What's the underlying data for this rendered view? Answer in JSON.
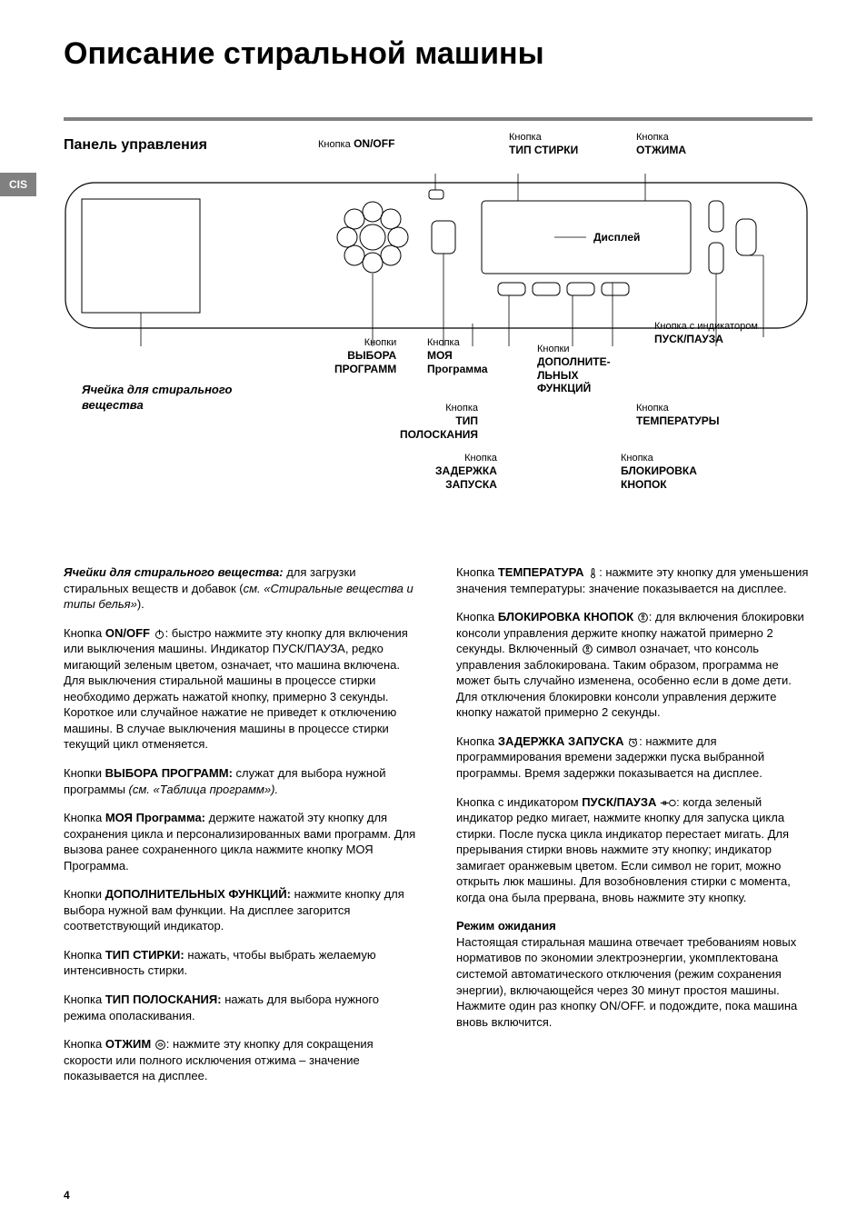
{
  "side_tab": "CIS",
  "page_title": "Описание стиральной машины",
  "panel_title": "Панель управления",
  "page_number": "4",
  "callouts": {
    "onoff": {
      "small": "Кнопка",
      "bold": "ON/OFF"
    },
    "wash_type": {
      "small": "Кнопка",
      "bold": "ТИП СТИРКИ"
    },
    "spin": {
      "small": "Кнопка",
      "bold": "ОТЖИМА"
    },
    "display": {
      "bold": "Дисплей"
    },
    "programs": {
      "small": "Кнопки",
      "bold": "ВЫБОРА ПРОГРАММ"
    },
    "my_program": {
      "small": "Кнопка",
      "bold": "МОЯ Программа"
    },
    "rinse_type": {
      "small": "Кнопка",
      "bold": "ТИП ПОЛОСКАНИЯ"
    },
    "extra_functions": {
      "small": "Кнопки",
      "bold": "ДОПОЛНИТЕ-ЛЬНЫХ ФУНКЦИЙ"
    },
    "start_pause": {
      "small": "Кнопка с индикатором",
      "bold": "ПУСК/ПАУЗА"
    },
    "temperature": {
      "small": "Кнопка",
      "bold": "ТЕМПЕРАТУРЫ"
    },
    "delay": {
      "small": "Кнопка",
      "bold": "ЗАДЕРЖКА ЗАПУСКА"
    },
    "lock": {
      "small": "Кнопка",
      "bold": "БЛОКИРОВКА КНОПОК"
    }
  },
  "detergent_label_l1": "Ячейка для стирального",
  "detergent_label_l2": "вещества",
  "left_col": [
    {
      "bold_italic": "Ячейки для стирального вещества:",
      "rest": " для загрузки стиральных веществ и добавок (",
      "italic": "см. «Стиральные вещества и типы белья»",
      "tail": ")."
    },
    {
      "pre": "Кнопка ",
      "bold": "ON/OFF",
      "icon": "power",
      "rest": ": быстро нажмите эту кнопку для включения или выключения машины. Индикатор ПУСК/ПАУЗА, редко мигающий зеленым цветом, означает, что машина включена. Для выключения стиральной машины в процессе стирки необходимо держать нажатой кнопку, примерно 3 секунды. Короткое или случайное нажатие не приведет к отключению машины. В случае выключения машины в процессе стирки текущий цикл отменяется."
    },
    {
      "pre": "Кнопки ",
      "bold": "ВЫБОРА ПРОГРАММ:",
      "rest": " служат для выбора нужной программы ",
      "italic": "(см. «Таблица программ»).",
      "tail": ""
    },
    {
      "pre": "Кнопка ",
      "bold": "МОЯ Программа:",
      "rest": " держите нажатой эту кнопку для сохранения цикла и персонализированных вами программ. Для вызова ранее сохраненного цикла нажмите кнопку МОЯ Программа."
    },
    {
      "pre": "Кнопки ",
      "bold": "ДОПОЛНИТЕЛЬНЫХ ФУНКЦИЙ:",
      "rest": " нажмите кнопку для выбора нужной вам функции. На дисплее загорится соответствующий индикатор."
    },
    {
      "pre": "Кнопка ",
      "bold": "ТИП СТИРКИ:",
      "rest": " нажать, чтобы выбрать желаемую интенсивность стирки."
    },
    {
      "pre": "Кнопка ",
      "bold": "ТИП ПОЛОСКАНИЯ:",
      "rest": " нажать для выбора нужного режима ополаскивания."
    },
    {
      "pre": "Кнопка ",
      "bold": "ОТЖИМ",
      "icon": "spin",
      "rest": ": нажмите эту кнопку для сокращения скорости или полного исключения отжима – значение показывается на дисплее."
    }
  ],
  "right_col": [
    {
      "pre": "Кнопка ",
      "bold": "ТЕМПЕРАТУРА",
      "icon": "temp",
      "rest": ": нажмите эту кнопку для уменьшения значения температуры: значение показывается на дисплее."
    },
    {
      "pre": "Кнопка ",
      "bold": "БЛОКИРОВКА КНОПОК",
      "icon": "lock",
      "rest": ": для включения блокировки консоли управления держите кнопку нажатой примерно 2 секунды. Включенный ",
      "icon2": "lock",
      "rest2": " символ означает, что консоль управления заблокирована. Таким образом, программа не может быть случайно изменена, особенно если в доме дети. Для отключения блокировки консоли управления держите кнопку нажатой примерно 2 секунды."
    },
    {
      "pre": "Кнопка ",
      "bold": "ЗАДЕРЖКА ЗАПУСКА",
      "icon": "delay",
      "rest": ": нажмите для программирования времени задержки пуска выбранной программы. Время задержки показывается на дисплее."
    },
    {
      "pre": "Кнопка с индикатором ",
      "bold": "ПУСК/ПАУЗА",
      "rest": ": когда зеленый индикатор редко мигает, нажмите кнопку для запуска цикла стирки. После пуска цикла индикатор перестает мигать. Для прерывания стирки вновь нажмите эту кнопку; индикатор замигает оранжевым цветом. Если символ ",
      "icon": "door",
      "rest2": " не горит, можно открыть люк машины. Для возобновления стирки с момента, когда она была прервана, вновь нажмите эту кнопку."
    },
    {
      "heading": "Режим ожидания",
      "rest": "Настоящая стиральная машина отвечает требованиям новых нормативов по экономии электроэнергии, укомплектована системой автоматического отключения (режим сохранения энергии), включающейся через 30 минут простоя машины. Нажмите один раз кнопку ON/OFF. и подождите, пока машина вновь включится."
    }
  ],
  "colors": {
    "text": "#000000",
    "bg": "#ffffff",
    "rule": "#808080",
    "tab_bg": "#808080",
    "tab_fg": "#ffffff",
    "diagram_stroke": "#000000"
  }
}
